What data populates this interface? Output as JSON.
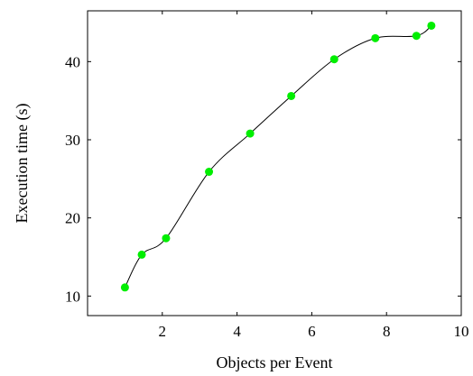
{
  "chart_data": {
    "type": "line",
    "title": "",
    "xlabel": "Objects per Event",
    "ylabel": "Execution time (s)",
    "xlim": [
      0,
      10
    ],
    "ylim": [
      7.5,
      46.5
    ],
    "xticks": [
      2,
      4,
      6,
      8,
      10
    ],
    "yticks": [
      10,
      20,
      30,
      40
    ],
    "grid": false,
    "legend": "none",
    "series": [
      {
        "line_color": "#000000",
        "marker_color": "#00ee00",
        "points": [
          {
            "x": 1.0,
            "y": 11.1
          },
          {
            "x": 1.45,
            "y": 15.3
          },
          {
            "x": 2.1,
            "y": 17.4
          },
          {
            "x": 3.25,
            "y": 25.9
          },
          {
            "x": 4.35,
            "y": 30.8
          },
          {
            "x": 5.45,
            "y": 35.6
          },
          {
            "x": 6.6,
            "y": 40.3
          },
          {
            "x": 7.7,
            "y": 43.0
          },
          {
            "x": 8.8,
            "y": 43.3
          },
          {
            "x": 9.2,
            "y": 44.6
          }
        ]
      }
    ]
  }
}
